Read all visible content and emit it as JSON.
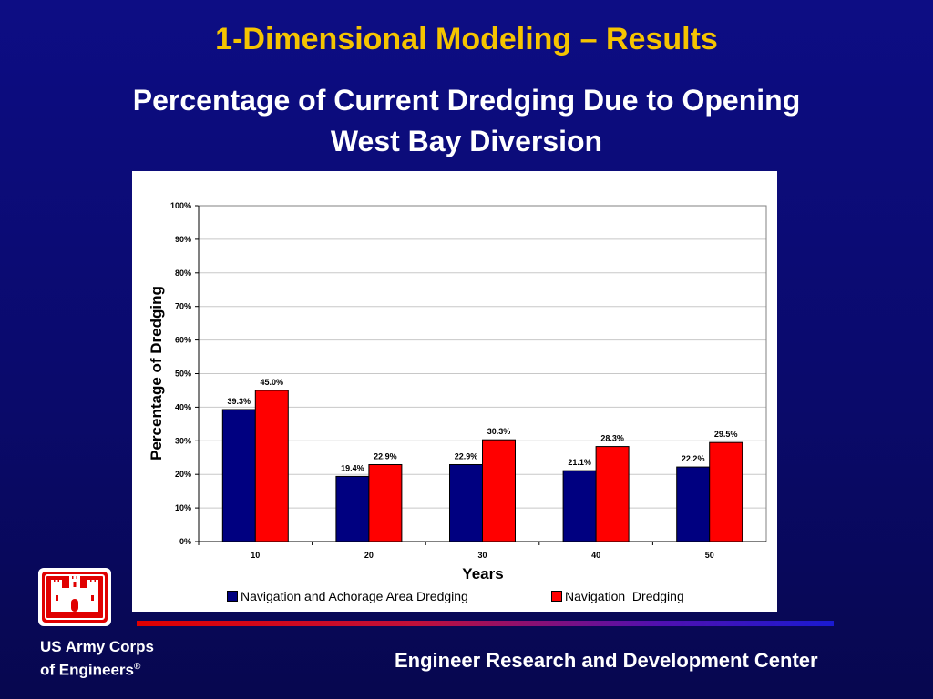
{
  "slide": {
    "title": "1-Dimensional Modeling – Results",
    "subtitle_line1": "Percentage of Current Dredging Due to Opening",
    "subtitle_line2": "West Bay Diversion"
  },
  "footer": {
    "org_line1": "US Army Corps",
    "org_line2": "of Engineers",
    "registered_mark": "®",
    "center_name": "Engineer Research and Development Center"
  },
  "colors": {
    "title": "#f5c400",
    "series_navy": "#000080",
    "series_red": "#ff0000",
    "logo_red": "#e00000"
  },
  "logo": {
    "icon": "castle-icon"
  },
  "chart_data": {
    "type": "bar",
    "title": "",
    "xlabel": "Years",
    "ylabel": "Percentage of Dredging",
    "categories": [
      "10",
      "20",
      "30",
      "40",
      "50"
    ],
    "ylim": [
      0,
      100
    ],
    "yticks": [
      "0%",
      "10%",
      "20%",
      "30%",
      "40%",
      "50%",
      "60%",
      "70%",
      "80%",
      "90%",
      "100%"
    ],
    "grid": true,
    "legend_position": "bottom",
    "series": [
      {
        "name": "Navigation and Achorage Area Dredging",
        "values": [
          39.3,
          19.4,
          22.9,
          21.1,
          22.2
        ],
        "labels": [
          "39.3%",
          "19.4%",
          "22.9%",
          "21.1%",
          "22.2%"
        ],
        "color": "#000080"
      },
      {
        "name": "Navigation  Dredging",
        "values": [
          45.0,
          22.9,
          30.3,
          28.3,
          29.5
        ],
        "labels": [
          "45.0%",
          "22.9%",
          "30.3%",
          "28.3%",
          "29.5%"
        ],
        "color": "#ff0000"
      }
    ]
  }
}
